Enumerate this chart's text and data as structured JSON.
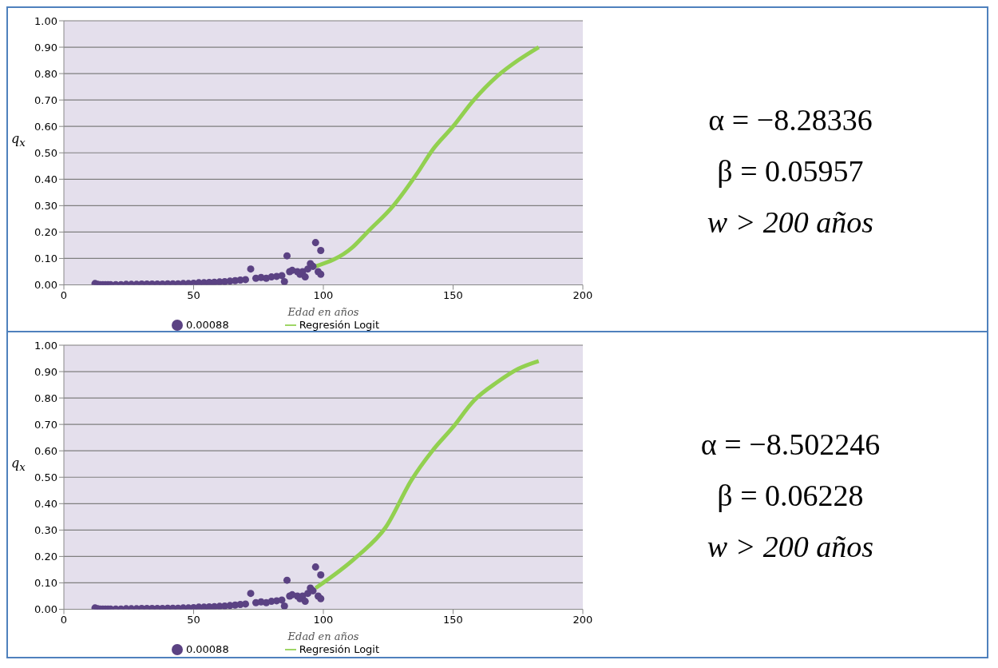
{
  "chart_data": [
    {
      "type": "scatter",
      "xlabel": "Edad en años",
      "ylabel": "q$_{x}$",
      "xlim": [
        0,
        200
      ],
      "xticks": [
        0,
        50,
        100,
        150,
        200
      ],
      "ylim": [
        0,
        1
      ],
      "yticks": [
        {
          "value": 0,
          "label": "0.00"
        },
        {
          "value": 0.1,
          "label": "0.10"
        },
        {
          "value": 0.2,
          "label": "0.20"
        },
        {
          "value": 0.3,
          "label": "0.30"
        },
        {
          "value": 0.4,
          "label": "0.40"
        },
        {
          "value": 0.5,
          "label": "0.50"
        },
        {
          "value": 0.6,
          "label": "0.60"
        },
        {
          "value": 0.7,
          "label": "0.70"
        },
        {
          "value": 0.8,
          "label": "0.80"
        },
        {
          "value": 0.9,
          "label": "0.90"
        },
        {
          "value": 1,
          "label": "1.00"
        }
      ],
      "grid": "y",
      "legend": "bottom",
      "series": [
        {
          "name": "0.00088",
          "type": "scatter",
          "marker": "circle",
          "color": "#5b4283",
          "x": [
            12,
            13,
            14,
            15,
            16,
            17,
            18,
            20,
            22,
            24,
            26,
            28,
            30,
            32,
            34,
            36,
            38,
            40,
            42,
            44,
            46,
            48,
            50,
            52,
            54,
            56,
            58,
            60,
            62,
            64,
            66,
            68,
            70,
            72,
            74,
            76,
            78,
            80,
            82,
            84,
            85,
            86,
            87,
            88,
            90,
            91,
            92,
            93,
            94,
            95,
            96,
            97,
            98,
            99,
            99
          ],
          "values": [
            0.005,
            0.002,
            0.001,
            0.001,
            0.001,
            0.001,
            0.001,
            0.001,
            0.001,
            0.002,
            0.002,
            0.002,
            0.003,
            0.003,
            0.003,
            0.003,
            0.003,
            0.004,
            0.004,
            0.004,
            0.005,
            0.005,
            0.006,
            0.008,
            0.008,
            0.009,
            0.01,
            0.011,
            0.012,
            0.014,
            0.016,
            0.018,
            0.02,
            0.06,
            0.025,
            0.028,
            0.025,
            0.03,
            0.032,
            0.035,
            0.012,
            0.11,
            0.05,
            0.055,
            0.05,
            0.04,
            0.05,
            0.03,
            0.06,
            0.08,
            0.07,
            0.16,
            0.05,
            0.13,
            0.04
          ]
        },
        {
          "name": "Regresión Logit",
          "type": "line",
          "marker": "none",
          "color": "#92d050",
          "x": [
            97,
            111,
            117,
            127,
            136,
            142,
            150,
            158,
            167,
            175,
            183
          ],
          "values": [
            0.07,
            0.14,
            0.2,
            0.3,
            0.42,
            0.51,
            0.6,
            0.7,
            0.79,
            0.85,
            0.9
          ]
        }
      ]
    },
    {
      "type": "other",
      "annotations": [
        "α = −8.28336",
        "β = 0.05957",
        "w > 200 años"
      ]
    },
    {
      "type": "scatter",
      "xlabel": "Edad en años",
      "ylabel": "q$_{x}$",
      "xlim": [
        0,
        200
      ],
      "xticks": [
        0,
        50,
        100,
        150,
        200
      ],
      "ylim": [
        0,
        1
      ],
      "yticks": [
        {
          "value": 0,
          "label": "0.00"
        },
        {
          "value": 0.1,
          "label": "0.10"
        },
        {
          "value": 0.2,
          "label": "0.20"
        },
        {
          "value": 0.3,
          "label": "0.30"
        },
        {
          "value": 0.4,
          "label": "0.40"
        },
        {
          "value": 0.5,
          "label": "0.50"
        },
        {
          "value": 0.6,
          "label": "0.60"
        },
        {
          "value": 0.7,
          "label": "0.70"
        },
        {
          "value": 0.8,
          "label": "0.80"
        },
        {
          "value": 0.9,
          "label": "0.90"
        },
        {
          "value": 1,
          "label": "1.00"
        }
      ],
      "grid": "y",
      "legend": "bottom",
      "series": [
        {
          "name": "0.00088",
          "type": "scatter",
          "marker": "circle",
          "color": "#5b4283",
          "x": [
            12,
            13,
            14,
            15,
            16,
            17,
            18,
            20,
            22,
            24,
            26,
            28,
            30,
            32,
            34,
            36,
            38,
            40,
            42,
            44,
            46,
            48,
            50,
            52,
            54,
            56,
            58,
            60,
            62,
            64,
            66,
            68,
            70,
            72,
            74,
            76,
            78,
            80,
            82,
            84,
            85,
            86,
            87,
            88,
            90,
            91,
            92,
            93,
            94,
            95,
            96,
            97,
            98,
            99,
            99
          ],
          "values": [
            0.005,
            0.002,
            0.001,
            0.001,
            0.001,
            0.001,
            0.001,
            0.001,
            0.001,
            0.002,
            0.002,
            0.002,
            0.003,
            0.003,
            0.003,
            0.003,
            0.003,
            0.004,
            0.004,
            0.004,
            0.005,
            0.005,
            0.006,
            0.008,
            0.008,
            0.009,
            0.01,
            0.011,
            0.012,
            0.014,
            0.016,
            0.018,
            0.02,
            0.06,
            0.025,
            0.028,
            0.025,
            0.03,
            0.032,
            0.035,
            0.012,
            0.11,
            0.05,
            0.055,
            0.05,
            0.04,
            0.05,
            0.03,
            0.06,
            0.08,
            0.07,
            0.16,
            0.05,
            0.13,
            0.04
          ]
        },
        {
          "name": "Regresión Logit",
          "type": "line",
          "marker": "none",
          "color": "#92d050",
          "x": [
            97,
            113,
            124,
            134,
            142,
            150,
            158,
            167,
            175,
            183
          ],
          "values": [
            0.08,
            0.2,
            0.31,
            0.49,
            0.6,
            0.69,
            0.79,
            0.86,
            0.91,
            0.94
          ]
        }
      ]
    },
    {
      "type": "other",
      "annotations": [
        "α = −8.502246",
        "β = 0.06228",
        "w > 200 años"
      ]
    }
  ]
}
